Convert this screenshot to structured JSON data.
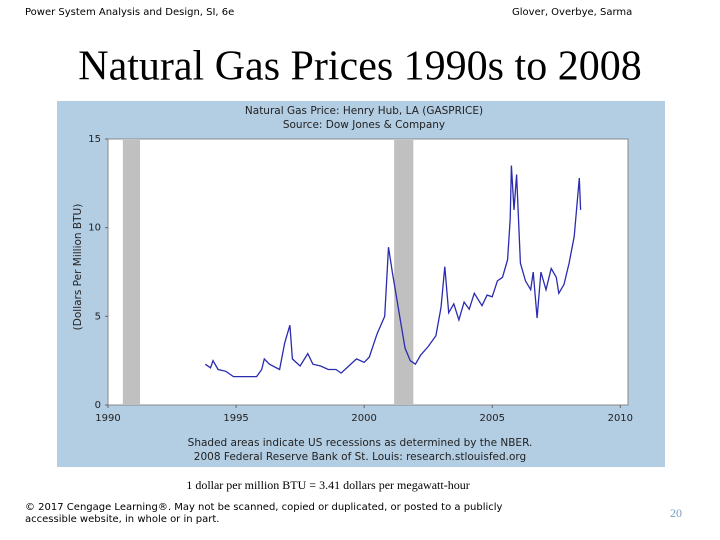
{
  "header": {
    "left": "Power System Analysis and Design, SI, 6e",
    "right": "Glover, Overbye, Sarma",
    "title": "Natural Gas Prices 1990s to 2008"
  },
  "chart_data": {
    "type": "line",
    "title": "Natural Gas Price: Henry Hub, LA (GASPRICE)",
    "subtitle": "Source: Dow Jones & Company",
    "y_label": "(Dollars Per Million BTU)",
    "notes": [
      "Shaded areas indicate US recessions as determined by the NBER.",
      "2008 Federal Reserve Bank of St. Louis: research.stlouisfed.org"
    ],
    "x": [
      1993.8,
      1994.0,
      1994.1,
      1994.3,
      1994.6,
      1994.9,
      1995.2,
      1995.5,
      1995.8,
      1996.0,
      1996.1,
      1996.3,
      1996.7,
      1996.9,
      1997.1,
      1997.2,
      1997.5,
      1997.8,
      1998.0,
      1998.3,
      1998.6,
      1998.9,
      1999.1,
      1999.4,
      1999.7,
      2000.0,
      2000.2,
      2000.5,
      2000.8,
      2000.95,
      2001.1,
      2001.4,
      2001.6,
      2001.8,
      2002.0,
      2002.2,
      2002.5,
      2002.8,
      2003.0,
      2003.15,
      2003.3,
      2003.5,
      2003.7,
      2003.9,
      2004.1,
      2004.3,
      2004.6,
      2004.8,
      2005.0,
      2005.2,
      2005.4,
      2005.6,
      2005.7,
      2005.75,
      2005.85,
      2005.95,
      2006.1,
      2006.3,
      2006.5,
      2006.6,
      2006.75,
      2006.9,
      2007.1,
      2007.3,
      2007.5,
      2007.6,
      2007.8,
      2008.0,
      2008.2,
      2008.4,
      2008.45
    ],
    "series": [
      {
        "name": "GASPRICE",
        "color": "#2b2bb0",
        "values": [
          2.3,
          2.1,
          2.5,
          2.0,
          1.9,
          1.6,
          1.6,
          1.6,
          1.6,
          2.0,
          2.6,
          2.3,
          2.0,
          3.5,
          4.5,
          2.6,
          2.2,
          2.9,
          2.3,
          2.2,
          2.0,
          2.0,
          1.8,
          2.2,
          2.6,
          2.4,
          2.7,
          4.0,
          5.0,
          8.9,
          7.5,
          4.9,
          3.2,
          2.5,
          2.3,
          2.8,
          3.3,
          3.9,
          5.5,
          7.8,
          5.2,
          5.7,
          4.8,
          5.8,
          5.4,
          6.3,
          5.6,
          6.2,
          6.1,
          7.0,
          7.2,
          8.2,
          10.5,
          13.5,
          11.0,
          13.0,
          8.0,
          7.0,
          6.5,
          7.5,
          4.9,
          7.5,
          6.5,
          7.7,
          7.2,
          6.3,
          6.8,
          8.0,
          9.5,
          12.8,
          11.0
        ]
      }
    ],
    "recessions": [
      [
        1990.58,
        1991.25
      ],
      [
        2001.17,
        2001.92
      ]
    ],
    "recession_color": "#c0c0c0",
    "xlim": [
      1990,
      2010.3
    ],
    "xticks": [
      1990,
      1995,
      2000,
      2005,
      2010
    ],
    "ylim": [
      0,
      15
    ],
    "yticks": [
      0,
      5,
      10,
      15
    ]
  },
  "note": "1 dollar per million BTU = 3.41 dollars per megawatt-hour",
  "footer": {
    "copyright": "© 2017 Cengage Learning®. May not be scanned, copied or duplicated, or posted to a publicly accessible website, in whole or in part.",
    "page": "20"
  }
}
